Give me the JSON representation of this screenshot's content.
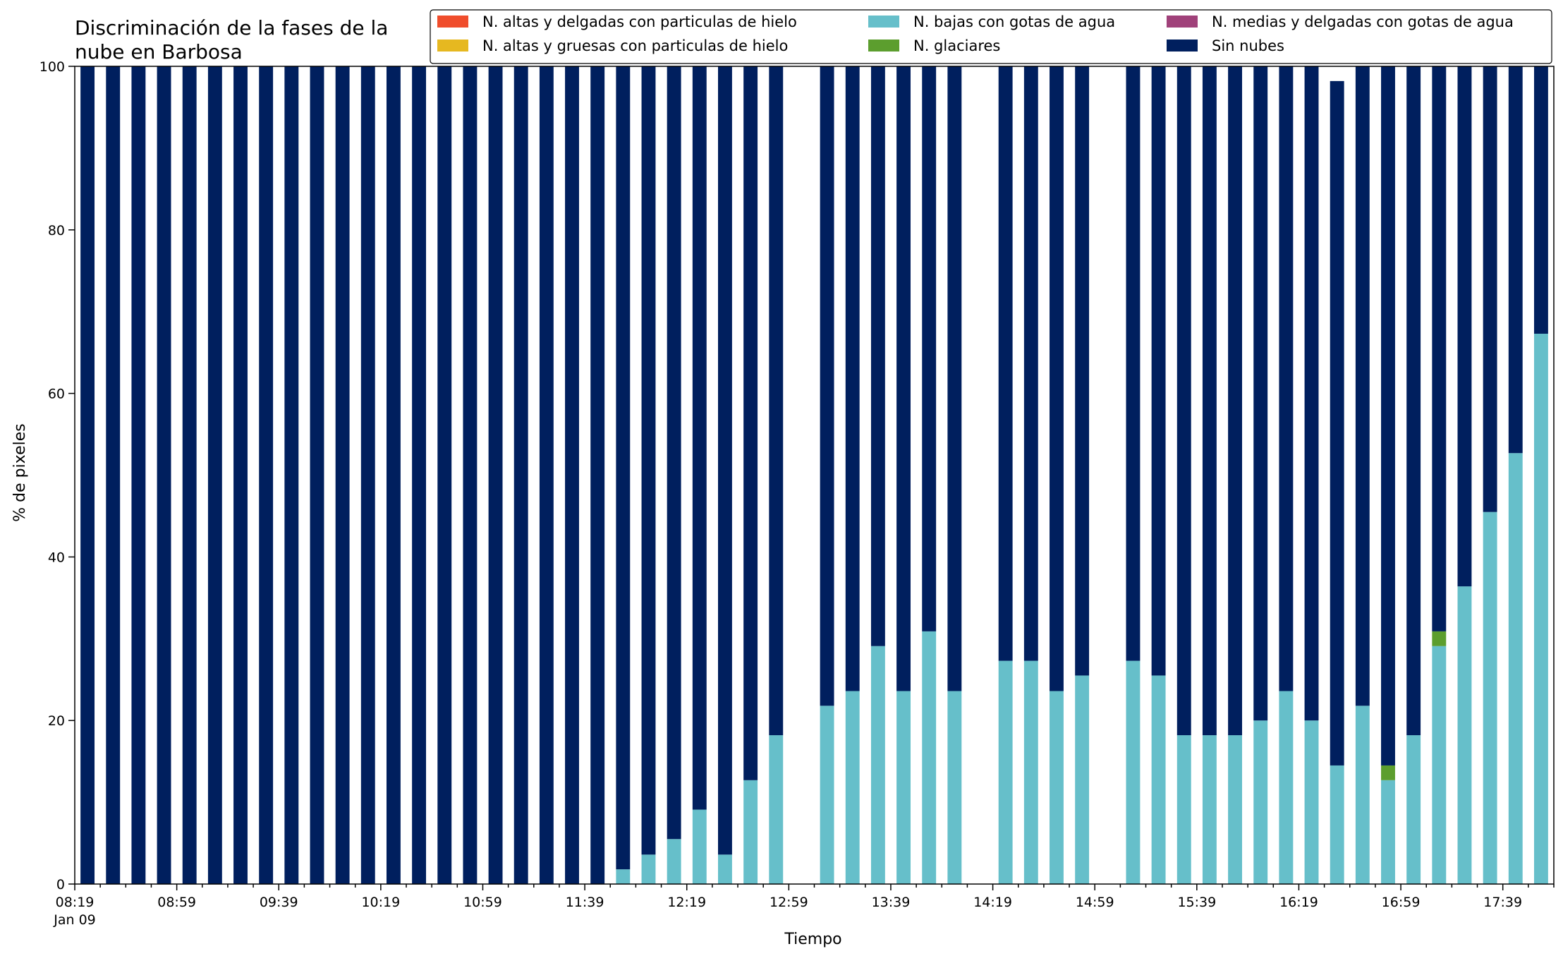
{
  "chart_data": {
    "type": "bar",
    "stacked": true,
    "title": "Discriminación de la fases de la nube en Barbosa",
    "title_lines": [
      "Discriminación de la fases de la",
      "nube en Barbosa"
    ],
    "xlabel": "Tiempo",
    "ylabel": "% de pixeles",
    "ylim": [
      0,
      100
    ],
    "yticks": [
      0,
      20,
      40,
      60,
      80,
      100
    ],
    "x_start": "08:19",
    "x_end": "17:59",
    "x_step_minutes": 10,
    "x_label_every_minutes": 40,
    "xticks": [
      "08:19",
      "08:59",
      "09:39",
      "10:19",
      "10:59",
      "11:39",
      "12:19",
      "12:59",
      "13:39",
      "14:19",
      "14:59",
      "15:39",
      "16:19",
      "16:59",
      "17:39"
    ],
    "x_first_sublabel": "Jan 09",
    "grid": false,
    "legend_position": "top-right",
    "legend_columns": 3,
    "categories": [
      "08:19",
      "08:29",
      "08:39",
      "08:49",
      "08:59",
      "09:09",
      "09:19",
      "09:29",
      "09:39",
      "09:49",
      "09:59",
      "10:09",
      "10:19",
      "10:29",
      "10:39",
      "10:49",
      "10:59",
      "11:09",
      "11:19",
      "11:29",
      "11:39",
      "11:49",
      "11:59",
      "12:09",
      "12:19",
      "12:29",
      "12:39",
      "12:49",
      "12:59",
      "13:09",
      "13:19",
      "13:29",
      "13:39",
      "13:49",
      "13:59",
      "14:09",
      "14:19",
      "14:29",
      "14:39",
      "14:49",
      "14:59",
      "15:09",
      "15:19",
      "15:29",
      "15:39",
      "15:49",
      "15:59",
      "16:09",
      "16:19",
      "16:29",
      "16:39",
      "16:49",
      "16:59",
      "17:09",
      "17:19",
      "17:29",
      "17:39",
      "17:49"
    ],
    "series": [
      {
        "name": "N. altas y delgadas con particulas de hielo",
        "color": "#f04d2c",
        "values": [
          0,
          0,
          0,
          0,
          0,
          0,
          0,
          0,
          0,
          0,
          0,
          0,
          0,
          0,
          0,
          0,
          0,
          0,
          0,
          0,
          0,
          0,
          0,
          0,
          0,
          0,
          0,
          0,
          0,
          0,
          0,
          0,
          0,
          0,
          0,
          0,
          0,
          0,
          0,
          0,
          0,
          0,
          0,
          0,
          0,
          0,
          0,
          0,
          0,
          0,
          0,
          0,
          0,
          0,
          0,
          0,
          0,
          0
        ]
      },
      {
        "name": "N. altas y gruesas con particulas de hielo",
        "color": "#e6b820",
        "values": [
          0,
          0,
          0,
          0,
          0,
          0,
          0,
          0,
          0,
          0,
          0,
          0,
          0,
          0,
          0,
          0,
          0,
          0,
          0,
          0,
          0,
          0,
          0,
          0,
          0,
          0,
          0,
          0,
          0,
          0,
          0,
          0,
          0,
          0,
          0,
          0,
          0,
          0,
          0,
          0,
          0,
          0,
          0,
          0,
          0,
          0,
          0,
          0,
          0,
          0,
          0,
          0,
          0,
          0,
          0,
          0,
          0,
          0
        ]
      },
      {
        "name": "N. bajas con gotas de agua",
        "color": "#66bfca",
        "values": [
          0,
          0,
          0,
          0,
          0,
          0,
          0,
          0,
          0,
          0,
          0,
          0,
          0,
          0,
          0,
          0,
          0,
          0,
          0,
          0,
          0,
          1.8,
          3.6,
          5.5,
          9.1,
          3.6,
          12.7,
          18.2,
          null,
          21.8,
          23.6,
          29.1,
          23.6,
          30.9,
          23.6,
          null,
          27.3,
          27.3,
          23.6,
          25.5,
          null,
          27.3,
          25.5,
          18.2,
          18.2,
          18.2,
          20.0,
          23.6,
          20.0,
          14.5,
          21.8,
          12.7,
          18.2,
          29.1,
          36.4,
          45.5,
          52.7,
          67.3
        ]
      },
      {
        "name": "N. glaciares",
        "color": "#5c9e2e",
        "values": [
          0,
          0,
          0,
          0,
          0,
          0,
          0,
          0,
          0,
          0,
          0,
          0,
          0,
          0,
          0,
          0,
          0,
          0,
          0,
          0,
          0,
          0,
          0,
          0,
          0,
          0,
          0,
          0,
          null,
          0,
          0,
          0,
          0,
          0,
          0,
          null,
          0,
          0,
          0,
          0,
          null,
          0,
          0,
          0,
          0,
          0,
          0,
          0,
          0,
          0,
          0,
          1.8,
          0,
          1.8,
          0,
          0,
          0,
          0
        ]
      },
      {
        "name": "N. medias y delgadas con gotas de agua",
        "color": "#a0417a",
        "values": [
          0,
          0,
          0,
          0,
          0,
          0,
          0,
          0,
          0,
          0,
          0,
          0,
          0,
          0,
          0,
          0,
          0,
          0,
          0,
          0,
          0,
          0,
          0,
          0,
          0,
          0,
          0,
          0,
          null,
          0,
          0,
          0,
          0,
          0,
          0,
          null,
          0,
          0,
          0,
          0,
          null,
          0,
          0,
          0,
          0,
          0,
          0,
          0,
          0,
          0,
          0,
          0,
          0,
          0,
          0,
          0,
          0,
          0
        ]
      },
      {
        "name": "Sin nubes",
        "color": "#001f5e",
        "values": [
          100,
          100,
          100,
          100,
          100,
          100,
          100,
          100,
          100,
          100,
          100,
          100,
          100,
          100,
          100,
          100,
          100,
          100,
          100,
          100,
          100,
          98.2,
          96.4,
          94.5,
          90.9,
          96.4,
          87.3,
          81.8,
          null,
          78.2,
          76.4,
          70.9,
          76.4,
          69.1,
          76.4,
          null,
          72.7,
          72.7,
          76.4,
          74.5,
          null,
          72.7,
          74.5,
          81.8,
          81.8,
          81.8,
          80.0,
          76.4,
          80.0,
          83.7,
          78.2,
          85.5,
          81.8,
          69.1,
          63.6,
          54.5,
          47.3,
          32.7
        ]
      }
    ]
  }
}
